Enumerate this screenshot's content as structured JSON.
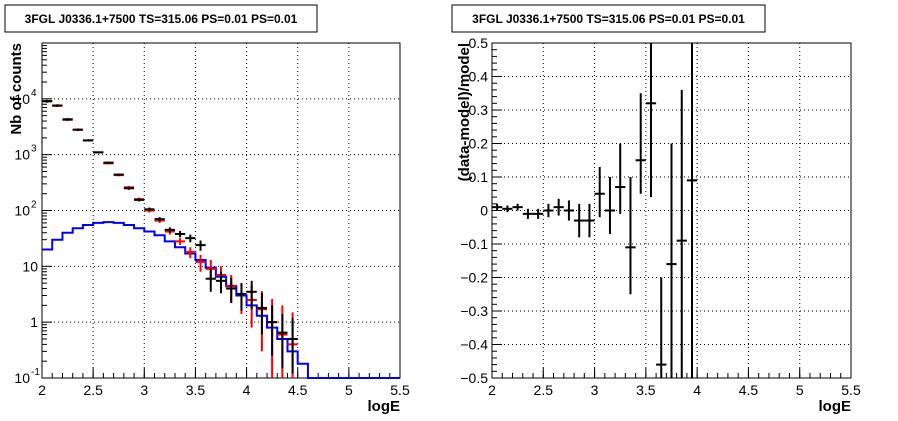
{
  "chart_data": [
    {
      "type": "line",
      "title": "3FGL J0336.1+7500 TS=315.06 PS=0.01 PS=0.01",
      "xlabel": "logE",
      "ylabel": "Nb of counts",
      "xlim": [
        2,
        5.5
      ],
      "ylim": [
        0.1,
        100000
      ],
      "yscale": "log",
      "grid": true,
      "xticks": [
        "2",
        "2.5",
        "3",
        "3.5",
        "4",
        "4.5",
        "5",
        "5.5"
      ],
      "yticks": [
        {
          "label": "10",
          "sup": "-1",
          "value": 0.1
        },
        {
          "label": "1",
          "sup": "",
          "value": 1
        },
        {
          "label": "10",
          "sup": "",
          "value": 10
        },
        {
          "label": "10",
          "sup": "2",
          "value": 100
        },
        {
          "label": "10",
          "sup": "3",
          "value": 1000
        },
        {
          "label": "10",
          "sup": "4",
          "value": 10000
        }
      ],
      "bin_edges": [
        2.0,
        2.1,
        2.2,
        2.3,
        2.4,
        2.5,
        2.6,
        2.7,
        2.8,
        2.9,
        3.0,
        3.1,
        3.2,
        3.3,
        3.4,
        3.5,
        3.6,
        3.7,
        3.8,
        3.9,
        4.0,
        4.1,
        4.2,
        4.3,
        4.4,
        4.5,
        4.6,
        4.7,
        4.8,
        4.9,
        5.0,
        5.1,
        5.2,
        5.3,
        5.4,
        5.5
      ],
      "series": [
        {
          "kind": "step",
          "color": "#0000ff",
          "values": [
            20,
            30,
            40,
            48,
            55,
            60,
            62,
            60,
            55,
            48,
            42,
            36,
            28,
            22,
            17,
            13,
            9.5,
            6.5,
            4.4,
            3.0,
            2.0,
            1.3,
            0.8,
            0.5,
            0.3,
            0.18,
            0.1,
            0.1,
            0.1,
            0.1,
            0.1,
            0.1,
            0.1,
            0.1,
            0.1
          ]
        },
        {
          "kind": "errorbar",
          "color": "#ff0000",
          "x": [
            2.05,
            2.15,
            2.25,
            2.35,
            2.45,
            2.55,
            2.65,
            2.75,
            2.85,
            2.95,
            3.05,
            3.15,
            3.25,
            3.35,
            3.45,
            3.55,
            3.65,
            3.75,
            3.85,
            3.95,
            4.05,
            4.15,
            4.25,
            4.35,
            4.45
          ],
          "y": [
            9000,
            7500,
            4200,
            2800,
            1800,
            1100,
            700,
            430,
            260,
            160,
            100,
            66,
            42,
            28,
            18,
            12,
            9,
            7,
            4.5,
            3.2,
            2.5,
            1.7,
            1.0,
            0.6,
            0.4
          ],
          "ylow": [
            8500,
            7100,
            4000,
            2650,
            1720,
            1060,
            670,
            410,
            245,
            150,
            92,
            60,
            37,
            24,
            14,
            8,
            5.5,
            4,
            2.2,
            1.4,
            0.8,
            0.3,
            0.1,
            0.1,
            0.1
          ],
          "yhigh": [
            9500,
            7900,
            4400,
            2950,
            1880,
            1140,
            730,
            450,
            275,
            170,
            108,
            72,
            47,
            32,
            22,
            16,
            13,
            10,
            7,
            5,
            4.5,
            3.6,
            2.6,
            2.0,
            1.5
          ]
        },
        {
          "kind": "errorbar",
          "color": "#000000",
          "x": [
            2.05,
            2.15,
            2.25,
            2.35,
            2.45,
            2.55,
            2.65,
            2.75,
            2.85,
            2.95,
            3.05,
            3.15,
            3.25,
            3.35,
            3.45,
            3.55,
            3.65,
            3.75,
            3.85,
            3.95,
            4.05,
            4.15,
            4.25,
            4.35,
            4.45
          ],
          "y": [
            9100,
            7600,
            4300,
            2800,
            1800,
            1100,
            720,
            440,
            250,
            155,
            105,
            70,
            45,
            38,
            32,
            24,
            6,
            5.5,
            4,
            3.2,
            3.5,
            1.8,
            1.0,
            0.65,
            0.5
          ],
          "ylow": [
            8600,
            7200,
            4100,
            2650,
            1720,
            1060,
            690,
            420,
            235,
            145,
            97,
            64,
            40,
            33,
            27,
            19,
            3.5,
            3.3,
            2.2,
            1.6,
            1.7,
            0.6,
            0.25,
            0.15,
            0.12
          ],
          "yhigh": [
            9600,
            8000,
            4500,
            2950,
            1880,
            1140,
            750,
            460,
            265,
            165,
            113,
            76,
            50,
            43,
            37,
            29,
            9,
            8,
            6.2,
            5,
            5.5,
            3.3,
            2.0,
            1.4,
            1.2
          ]
        }
      ]
    },
    {
      "type": "scatter",
      "title": "3FGL J0336.1+7500 TS=315.06 PS=0.01 PS=0.01",
      "xlabel": "logE",
      "ylabel": "(data-model)/model",
      "xlim": [
        2,
        5.5
      ],
      "ylim": [
        -0.5,
        0.5
      ],
      "grid": true,
      "xticks": [
        "2",
        "2.5",
        "3",
        "3.5",
        "4",
        "4.5",
        "5",
        "5.5"
      ],
      "yticks": [
        "−0.5",
        "−0.4",
        "−0.3",
        "−0.2",
        "−0.1",
        "0",
        "0.1",
        "0.2",
        "0.3",
        "0.4",
        "0.5"
      ],
      "series": [
        {
          "kind": "errorbar",
          "color": "#000000",
          "x": [
            2.05,
            2.15,
            2.25,
            2.35,
            2.45,
            2.55,
            2.65,
            2.75,
            2.85,
            2.95,
            3.05,
            3.15,
            3.25,
            3.35,
            3.45,
            3.55,
            3.65,
            3.75,
            3.85,
            3.95
          ],
          "y": [
            0.01,
            0.005,
            0.01,
            -0.01,
            -0.01,
            0.0,
            0.01,
            0.0,
            -0.03,
            -0.03,
            0.05,
            0.0,
            0.07,
            -0.11,
            0.15,
            0.32,
            -0.46,
            -0.16,
            -0.09,
            0.09
          ],
          "ylow": [
            0.0,
            -0.005,
            0.0,
            -0.025,
            -0.025,
            -0.02,
            -0.015,
            -0.03,
            -0.08,
            -0.08,
            -0.02,
            -0.07,
            -0.01,
            -0.25,
            0.05,
            0.04,
            -0.5,
            -0.5,
            -0.5,
            -0.5
          ],
          "yhigh": [
            0.02,
            0.015,
            0.02,
            0.005,
            0.005,
            0.02,
            0.035,
            0.03,
            0.02,
            0.02,
            0.13,
            0.1,
            0.2,
            0.1,
            0.35,
            0.5,
            -0.2,
            0.2,
            0.36,
            0.5
          ]
        }
      ]
    }
  ]
}
